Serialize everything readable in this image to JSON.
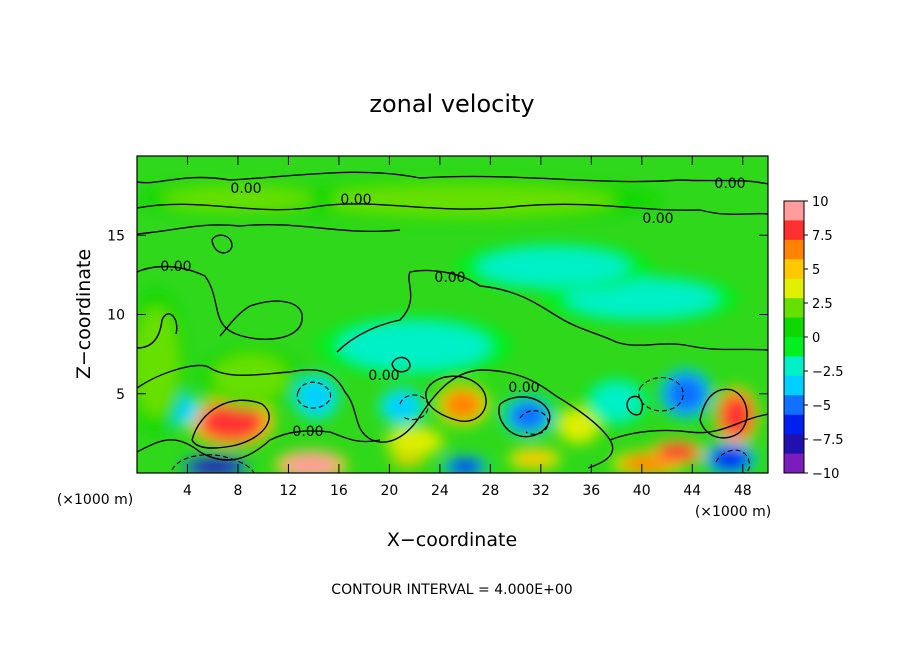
{
  "chart_data": {
    "type": "heatmap",
    "title": "zonal velocity",
    "xlabel": "X−coordinate",
    "ylabel": "Z−coordinate",
    "x_unit_left": "(×1000 m)",
    "x_unit_right": "(×1000 m)",
    "xlim": [
      0,
      50
    ],
    "ylim": [
      0,
      20
    ],
    "x_ticks": [
      4,
      8,
      12,
      16,
      20,
      24,
      28,
      32,
      36,
      40,
      44,
      48
    ],
    "y_ticks": [
      5,
      10,
      15
    ],
    "colorbar": {
      "ticks": [
        10,
        7.5,
        5,
        2.5,
        0,
        -2.5,
        -5,
        -7.5,
        -10
      ],
      "tick_labels": [
        "10",
        "7.5",
        "5",
        "2.5",
        "0",
        "−2.5",
        "−5",
        "−7.5",
        "−10"
      ],
      "colors": [
        "#ff9d9d",
        "#ff3030",
        "#ff8200",
        "#ffc800",
        "#e0f000",
        "#66e000",
        "#0fd800",
        "#00f020",
        "#00f0c8",
        "#00d0ff",
        "#1070ff",
        "#0020f0",
        "#2010b0",
        "#7a1dbd"
      ]
    },
    "contour_labels": [
      "0.00",
      "0.00",
      "0.00",
      "0.00",
      "0.00",
      "0.00",
      "0.00",
      "0.00",
      "0.00"
    ],
    "note": "CONTOUR INTERVAL = 4.000E+00",
    "field_blobs": [
      {
        "x": 7.5,
        "z": 3.2,
        "rx": 2.6,
        "rz": 1.2,
        "v": 8.5
      },
      {
        "x": 13.8,
        "z": 0.5,
        "rx": 2.2,
        "rz": 0.7,
        "v": 9
      },
      {
        "x": 6.2,
        "z": 0.4,
        "rx": 2.0,
        "rz": 0.5,
        "v": -8
      },
      {
        "x": 25.8,
        "z": 4.3,
        "rx": 1.6,
        "rz": 1.0,
        "v": 6.5
      },
      {
        "x": 21.5,
        "z": 1.0,
        "rx": 1.2,
        "rz": 0.5,
        "v": 5
      },
      {
        "x": 31.5,
        "z": 0.9,
        "rx": 1.6,
        "rz": 0.5,
        "v": 5.5
      },
      {
        "x": 40.5,
        "z": 0.6,
        "rx": 2.2,
        "rz": 0.6,
        "v": 6.5
      },
      {
        "x": 42.8,
        "z": 1.3,
        "rx": 1.6,
        "rz": 0.6,
        "v": 8
      },
      {
        "x": 47.5,
        "z": 3.6,
        "rx": 1.3,
        "rz": 1.4,
        "v": 8
      },
      {
        "x": 47.0,
        "z": 0.9,
        "rx": 1.6,
        "rz": 0.8,
        "v": -7
      },
      {
        "x": 43.5,
        "z": 5.0,
        "rx": 1.6,
        "rz": 1.2,
        "v": -5.5
      },
      {
        "x": 31.0,
        "z": 3.6,
        "rx": 1.6,
        "rz": 1.0,
        "v": -4.5
      },
      {
        "x": 26.0,
        "z": 0.4,
        "rx": 1.4,
        "rz": 0.5,
        "v": -6
      },
      {
        "x": 14.2,
        "z": 4.8,
        "rx": 1.4,
        "rz": 1.1,
        "v": -4
      },
      {
        "x": 21.0,
        "z": 4.2,
        "rx": 1.4,
        "rz": 0.9,
        "v": -4
      },
      {
        "x": 3.5,
        "z": 4.0,
        "rx": 1.2,
        "rz": 0.8,
        "v": -3
      },
      {
        "x": 1.5,
        "z": 7.0,
        "rx": 1.8,
        "rz": 3.5,
        "v": 2.5
      },
      {
        "x": 35.0,
        "z": 3.0,
        "rx": 1.5,
        "rz": 1.0,
        "v": 3.5
      },
      {
        "x": 9.0,
        "z": 6.0,
        "rx": 3.0,
        "rz": 1.5,
        "v": 1.5
      },
      {
        "x": 22.0,
        "z": 2.0,
        "rx": 2.0,
        "rz": 0.8,
        "v": 3
      },
      {
        "x": 26.0,
        "z": 17.2,
        "rx": 12.0,
        "rz": 1.0,
        "v": 1.5
      },
      {
        "x": 8.0,
        "z": 17.3,
        "rx": 6.0,
        "rz": 0.8,
        "v": 1.5
      },
      {
        "x": 40.0,
        "z": 11.0,
        "rx": 6.0,
        "rz": 1.2,
        "v": -2.5
      },
      {
        "x": 33.0,
        "z": 13.0,
        "rx": 6.0,
        "rz": 1.2,
        "v": -1.5
      },
      {
        "x": 22.0,
        "z": 8.0,
        "rx": 6.0,
        "rz": 1.5,
        "v": -1.5
      },
      {
        "x": 38.0,
        "z": 4.5,
        "rx": 2.0,
        "rz": 1.2,
        "v": -1.5
      }
    ]
  }
}
